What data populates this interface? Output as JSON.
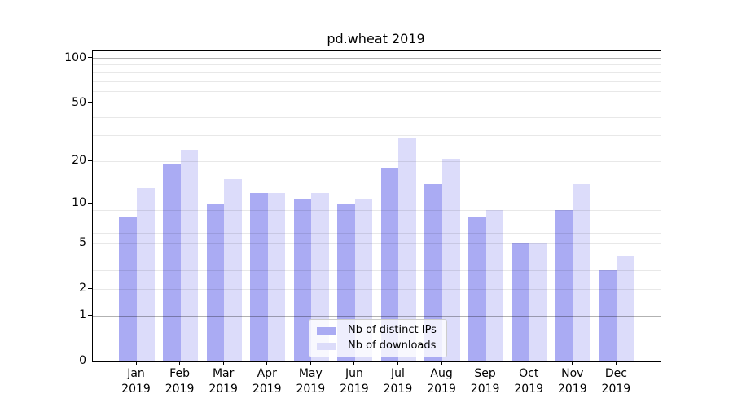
{
  "chart_data": {
    "type": "bar",
    "title": "pd.wheat 2019",
    "categories": [
      "Jan",
      "Feb",
      "Mar",
      "Apr",
      "May",
      "Jun",
      "Jul",
      "Aug",
      "Sep",
      "Oct",
      "Nov",
      "Dec"
    ],
    "year_label": "2019",
    "series": [
      {
        "name": "Nb of distinct IPs",
        "color": "#aaabf3",
        "values": [
          8,
          19,
          10,
          12,
          11,
          10,
          18,
          14,
          8,
          5,
          9,
          3
        ]
      },
      {
        "name": "Nb of downloads",
        "color": "#dcdcfa",
        "values": [
          13,
          24,
          15,
          12,
          12,
          11,
          29,
          21,
          9,
          5,
          14,
          4
        ]
      }
    ],
    "yscale": "log1p",
    "ylim": [
      0,
      111
    ],
    "y_tick_labels": [
      "0",
      "1",
      "2",
      "5",
      "10",
      "20",
      "50",
      "100"
    ],
    "y_tick_values": [
      0,
      1,
      2,
      5,
      10,
      20,
      50,
      100
    ],
    "gridlines": {
      "dark_values": [
        1,
        10,
        100
      ],
      "light_values": [
        2,
        5,
        20,
        50,
        3,
        4,
        6,
        7,
        8,
        9,
        30,
        40,
        60,
        70,
        80,
        90
      ],
      "dark_color": "rgba(0,0,0,0.30)",
      "light_color": "rgba(0,0,0,0.09)"
    },
    "legend_position": "lower center",
    "grid": true,
    "xlabel": "",
    "ylabel": ""
  }
}
